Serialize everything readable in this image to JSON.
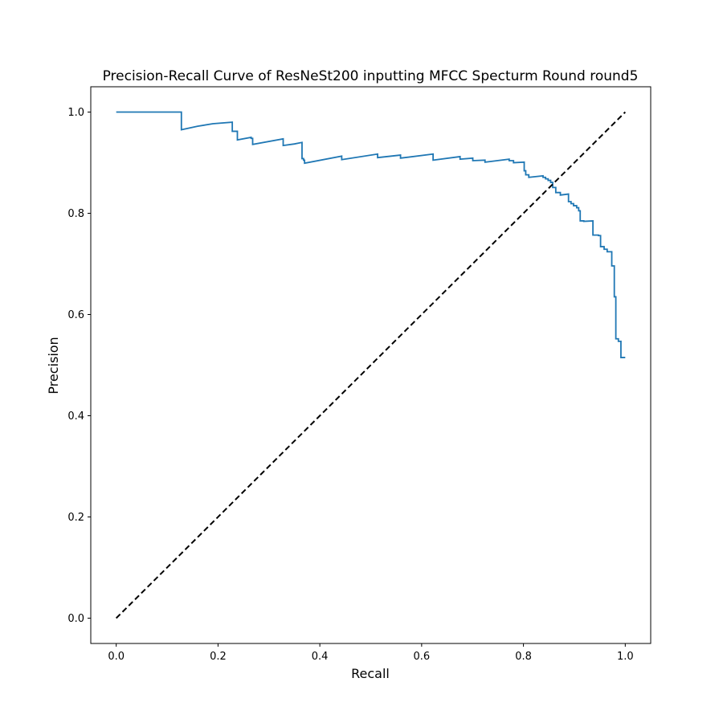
{
  "chart_data": {
    "type": "line",
    "title": "Precision-Recall Curve of ResNeSt200 inputting MFCC Specturm Round round5",
    "xlabel": "Recall",
    "ylabel": "Precision",
    "xlim": [
      -0.05,
      1.05
    ],
    "ylim": [
      -0.05,
      1.05
    ],
    "xticks": [
      "0.0",
      "0.2",
      "0.4",
      "0.6",
      "0.8",
      "1.0"
    ],
    "yticks": [
      "0.0",
      "0.2",
      "0.4",
      "0.6",
      "0.8",
      "1.0"
    ],
    "grid": false,
    "series": [
      {
        "color": "#1f77b4",
        "style": "solid",
        "x": [
          0.0,
          0.128,
          0.128,
          0.16,
          0.19,
          0.228,
          0.228,
          0.238,
          0.238,
          0.265,
          0.265,
          0.268,
          0.268,
          0.328,
          0.328,
          0.35,
          0.365,
          0.365,
          0.368,
          0.368,
          0.37,
          0.37,
          0.443,
          0.443,
          0.5135,
          0.5135,
          0.5585,
          0.5585,
          0.6225,
          0.6225,
          0.6755,
          0.6755,
          0.7005,
          0.7005,
          0.7245,
          0.7245,
          0.772,
          0.772,
          0.7805,
          0.7805,
          0.8015,
          0.8015,
          0.8045,
          0.8045,
          0.8105,
          0.8105,
          0.8385,
          0.8385,
          0.8435,
          0.8435,
          0.8485,
          0.8485,
          0.8535,
          0.8535,
          0.8575,
          0.8575,
          0.8635,
          0.8635,
          0.8725,
          0.8725,
          0.8885,
          0.8885,
          0.8935,
          0.8935,
          0.8985,
          0.8985,
          0.9045,
          0.9045,
          0.9085,
          0.9085,
          0.9115,
          0.9115,
          0.9185,
          0.9185,
          0.9365,
          0.9365,
          0.9475,
          0.9475,
          0.9515,
          0.9515,
          0.9585,
          0.9585,
          0.9645,
          0.9645,
          0.9735,
          0.9735,
          0.9785,
          0.9785,
          0.9815,
          0.9815,
          0.9865,
          0.9865,
          0.9915,
          0.9915,
          1.0
        ],
        "y": [
          1.0,
          1.0,
          0.965,
          0.972,
          0.977,
          0.98,
          0.962,
          0.962,
          0.945,
          0.95,
          0.948,
          0.948,
          0.936,
          0.947,
          0.934,
          0.937,
          0.94,
          0.908,
          0.908,
          0.905,
          0.905,
          0.899,
          0.913,
          0.906,
          0.917,
          0.91,
          0.915,
          0.909,
          0.917,
          0.905,
          0.912,
          0.907,
          0.909,
          0.904,
          0.905,
          0.901,
          0.907,
          0.904,
          0.904,
          0.9,
          0.901,
          0.884,
          0.884,
          0.876,
          0.876,
          0.871,
          0.874,
          0.871,
          0.871,
          0.868,
          0.868,
          0.865,
          0.865,
          0.861,
          0.861,
          0.851,
          0.851,
          0.841,
          0.841,
          0.836,
          0.838,
          0.823,
          0.823,
          0.819,
          0.819,
          0.815,
          0.815,
          0.811,
          0.811,
          0.805,
          0.805,
          0.785,
          0.785,
          0.784,
          0.785,
          0.757,
          0.757,
          0.756,
          0.756,
          0.734,
          0.734,
          0.729,
          0.729,
          0.724,
          0.724,
          0.696,
          0.696,
          0.635,
          0.635,
          0.552,
          0.552,
          0.547,
          0.547,
          0.515,
          0.515
        ]
      },
      {
        "color": "#000000",
        "style": "dashed",
        "x": [
          0.0,
          1.0
        ],
        "y": [
          0.0,
          1.0
        ]
      }
    ]
  }
}
